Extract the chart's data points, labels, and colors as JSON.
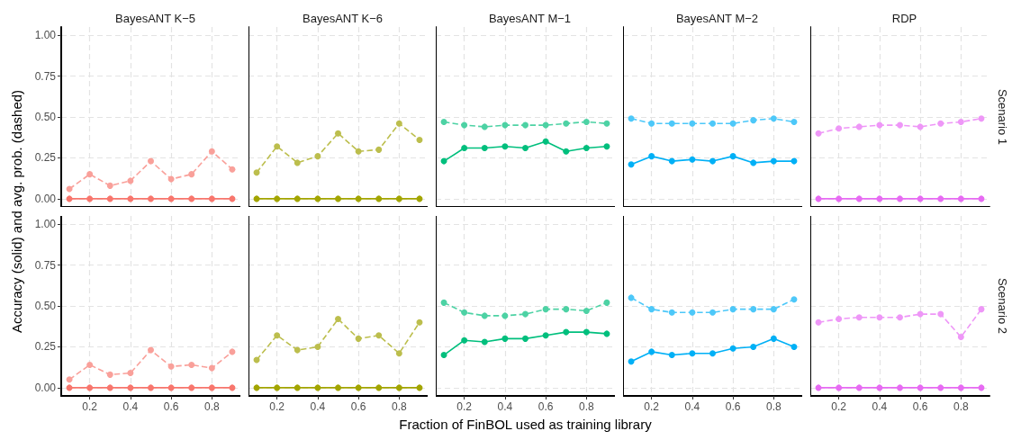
{
  "chart_data": [
    {
      "type": "line",
      "title": "BayesANT K−5",
      "ylabel": "Accuracy (solid) and avg. prob. (dashed)",
      "x": [
        0.1,
        0.2,
        0.3,
        0.4,
        0.5,
        0.6,
        0.7,
        0.8,
        0.9
      ],
      "xlim": [
        0.06,
        0.94
      ],
      "ylim": [
        -0.05,
        1.05
      ],
      "xticks": [
        0.2,
        0.4,
        0.6,
        0.8
      ],
      "yticks": [
        {
          "value": 0,
          "label": "0.00"
        },
        {
          "value": 0.25,
          "label": "0.25"
        },
        {
          "value": 0.5,
          "label": "0.50"
        },
        {
          "value": 0.75,
          "label": "0.75"
        },
        {
          "value": 1,
          "label": "1.00"
        }
      ],
      "tick_labels": "y",
      "grid": true,
      "marker": "circle",
      "series": [
        {
          "color": "#f8766d",
          "line_style": "solid",
          "values": [
            0,
            0,
            0,
            0,
            0,
            0,
            0,
            0,
            0
          ]
        },
        {
          "color": "#f9a09a",
          "line_style": "dashed",
          "values": [
            0.06,
            0.15,
            0.08,
            0.11,
            0.23,
            0.12,
            0.15,
            0.29,
            0.18
          ]
        }
      ]
    },
    {
      "type": "line",
      "title": "BayesANT K−6",
      "x": [
        0.1,
        0.2,
        0.3,
        0.4,
        0.5,
        0.6,
        0.7,
        0.8,
        0.9
      ],
      "xlim": [
        0.06,
        0.94
      ],
      "ylim": [
        -0.05,
        1.05
      ],
      "xticks": [
        0.2,
        0.4,
        0.6,
        0.8
      ],
      "yticks": [
        0,
        0.25,
        0.5,
        0.75,
        1
      ],
      "tick_labels": false,
      "grid": true,
      "marker": "circle",
      "series": [
        {
          "color": "#a3a500",
          "line_style": "solid",
          "values": [
            0,
            0,
            0,
            0,
            0,
            0,
            0,
            0,
            0
          ]
        },
        {
          "color": "#bcbe4d",
          "line_style": "dashed",
          "values": [
            0.16,
            0.32,
            0.22,
            0.26,
            0.4,
            0.29,
            0.3,
            0.46,
            0.36
          ]
        }
      ]
    },
    {
      "type": "line",
      "title": "BayesANT M−1",
      "x": [
        0.1,
        0.2,
        0.3,
        0.4,
        0.5,
        0.6,
        0.7,
        0.8,
        0.9
      ],
      "xlim": [
        0.06,
        0.94
      ],
      "ylim": [
        -0.05,
        1.05
      ],
      "xticks": [
        0.2,
        0.4,
        0.6,
        0.8
      ],
      "yticks": [
        0,
        0.25,
        0.5,
        0.75,
        1
      ],
      "tick_labels": false,
      "grid": true,
      "marker": "circle",
      "series": [
        {
          "color": "#00bf7d",
          "line_style": "solid",
          "values": [
            0.23,
            0.31,
            0.31,
            0.32,
            0.31,
            0.35,
            0.29,
            0.31,
            0.32
          ]
        },
        {
          "color": "#4dd2a4",
          "line_style": "dashed",
          "values": [
            0.47,
            0.45,
            0.44,
            0.45,
            0.45,
            0.45,
            0.46,
            0.47,
            0.46
          ]
        }
      ]
    },
    {
      "type": "line",
      "title": "BayesANT M−2",
      "x": [
        0.1,
        0.2,
        0.3,
        0.4,
        0.5,
        0.6,
        0.7,
        0.8,
        0.9
      ],
      "xlim": [
        0.06,
        0.94
      ],
      "ylim": [
        -0.05,
        1.05
      ],
      "xticks": [
        0.2,
        0.4,
        0.6,
        0.8
      ],
      "yticks": [
        0,
        0.25,
        0.5,
        0.75,
        1
      ],
      "tick_labels": false,
      "grid": true,
      "marker": "circle",
      "series": [
        {
          "color": "#00b0f6",
          "line_style": "solid",
          "values": [
            0.21,
            0.26,
            0.23,
            0.24,
            0.23,
            0.26,
            0.22,
            0.23,
            0.23
          ]
        },
        {
          "color": "#4dc8f9",
          "line_style": "dashed",
          "values": [
            0.49,
            0.46,
            0.46,
            0.46,
            0.46,
            0.46,
            0.48,
            0.49,
            0.47
          ]
        }
      ]
    },
    {
      "type": "line",
      "title": "RDP",
      "annotations": [
        "Scenario 1"
      ],
      "x": [
        0.1,
        0.2,
        0.3,
        0.4,
        0.5,
        0.6,
        0.7,
        0.8,
        0.9
      ],
      "xlim": [
        0.06,
        0.94
      ],
      "ylim": [
        -0.05,
        1.05
      ],
      "xticks": [
        0.2,
        0.4,
        0.6,
        0.8
      ],
      "yticks": [
        0,
        0.25,
        0.5,
        0.75,
        1
      ],
      "tick_labels": false,
      "grid": true,
      "marker": "circle",
      "series": [
        {
          "color": "#e76bf3",
          "line_style": "solid",
          "values": [
            0,
            0,
            0,
            0,
            0,
            0,
            0,
            0,
            0
          ]
        },
        {
          "color": "#ee97f7",
          "line_style": "dashed",
          "values": [
            0.4,
            0.43,
            0.44,
            0.45,
            0.45,
            0.44,
            0.46,
            0.47,
            0.49
          ]
        }
      ]
    },
    {
      "type": "line",
      "x": [
        0.1,
        0.2,
        0.3,
        0.4,
        0.5,
        0.6,
        0.7,
        0.8,
        0.9
      ],
      "xlim": [
        0.06,
        0.94
      ],
      "ylim": [
        -0.05,
        1.05
      ],
      "xticks": [
        0.2,
        0.4,
        0.6,
        0.8
      ],
      "yticks": [
        {
          "value": 0,
          "label": "0.00"
        },
        {
          "value": 0.25,
          "label": "0.25"
        },
        {
          "value": 0.5,
          "label": "0.50"
        },
        {
          "value": 0.75,
          "label": "0.75"
        },
        {
          "value": 1,
          "label": "1.00"
        }
      ],
      "grid": true,
      "marker": "circle",
      "series": [
        {
          "color": "#f8766d",
          "line_style": "solid",
          "values": [
            0,
            0,
            0,
            0,
            0,
            0,
            0,
            0,
            0
          ]
        },
        {
          "color": "#f9a09a",
          "line_style": "dashed",
          "values": [
            0.05,
            0.14,
            0.08,
            0.09,
            0.23,
            0.13,
            0.14,
            0.12,
            0.22
          ]
        }
      ]
    },
    {
      "type": "line",
      "x": [
        0.1,
        0.2,
        0.3,
        0.4,
        0.5,
        0.6,
        0.7,
        0.8,
        0.9
      ],
      "xlim": [
        0.06,
        0.94
      ],
      "ylim": [
        -0.05,
        1.05
      ],
      "xticks": [
        0.2,
        0.4,
        0.6,
        0.8
      ],
      "yticks": [
        0,
        0.25,
        0.5,
        0.75,
        1
      ],
      "tick_labels": "x",
      "grid": true,
      "marker": "circle",
      "series": [
        {
          "color": "#a3a500",
          "line_style": "solid",
          "values": [
            0,
            0,
            0,
            0,
            0,
            0,
            0,
            0,
            0
          ]
        },
        {
          "color": "#bcbe4d",
          "line_style": "dashed",
          "values": [
            0.17,
            0.32,
            0.23,
            0.25,
            0.42,
            0.3,
            0.32,
            0.21,
            0.4
          ]
        }
      ]
    },
    {
      "type": "line",
      "xlabel": "Fraction of FinBOL used as training library",
      "x": [
        0.1,
        0.2,
        0.3,
        0.4,
        0.5,
        0.6,
        0.7,
        0.8,
        0.9
      ],
      "xlim": [
        0.06,
        0.94
      ],
      "ylim": [
        -0.05,
        1.05
      ],
      "xticks": [
        0.2,
        0.4,
        0.6,
        0.8
      ],
      "yticks": [
        0,
        0.25,
        0.5,
        0.75,
        1
      ],
      "tick_labels": "x",
      "grid": true,
      "marker": "circle",
      "series": [
        {
          "color": "#00bf7d",
          "line_style": "solid",
          "values": [
            0.2,
            0.29,
            0.28,
            0.3,
            0.3,
            0.32,
            0.34,
            0.34,
            0.33
          ]
        },
        {
          "color": "#4dd2a4",
          "line_style": "dashed",
          "values": [
            0.52,
            0.46,
            0.44,
            0.44,
            0.45,
            0.48,
            0.48,
            0.47,
            0.52
          ]
        }
      ]
    },
    {
      "type": "line",
      "x": [
        0.1,
        0.2,
        0.3,
        0.4,
        0.5,
        0.6,
        0.7,
        0.8,
        0.9
      ],
      "xlim": [
        0.06,
        0.94
      ],
      "ylim": [
        -0.05,
        1.05
      ],
      "xticks": [
        0.2,
        0.4,
        0.6,
        0.8
      ],
      "yticks": [
        0,
        0.25,
        0.5,
        0.75,
        1
      ],
      "tick_labels": "x",
      "grid": true,
      "marker": "circle",
      "series": [
        {
          "color": "#00b0f6",
          "line_style": "solid",
          "values": [
            0.16,
            0.22,
            0.2,
            0.21,
            0.21,
            0.24,
            0.25,
            0.3,
            0.25
          ]
        },
        {
          "color": "#4dc8f9",
          "line_style": "dashed",
          "values": [
            0.55,
            0.48,
            0.46,
            0.46,
            0.46,
            0.48,
            0.48,
            0.48,
            0.54
          ]
        }
      ]
    },
    {
      "type": "line",
      "annotations": [
        "Scenario 2"
      ],
      "x": [
        0.1,
        0.2,
        0.3,
        0.4,
        0.5,
        0.6,
        0.7,
        0.8,
        0.9
      ],
      "xlim": [
        0.06,
        0.94
      ],
      "ylim": [
        -0.05,
        1.05
      ],
      "xticks": [
        0.2,
        0.4,
        0.6,
        0.8
      ],
      "yticks": [
        0,
        0.25,
        0.5,
        0.75,
        1
      ],
      "tick_labels": "x",
      "grid": true,
      "marker": "circle",
      "series": [
        {
          "color": "#e76bf3",
          "line_style": "solid",
          "values": [
            0,
            0,
            0,
            0,
            0,
            0,
            0,
            0,
            0
          ]
        },
        {
          "color": "#ee97f7",
          "line_style": "dashed",
          "values": [
            0.4,
            0.42,
            0.43,
            0.43,
            0.43,
            0.45,
            0.45,
            0.31,
            0.48
          ]
        }
      ]
    }
  ]
}
